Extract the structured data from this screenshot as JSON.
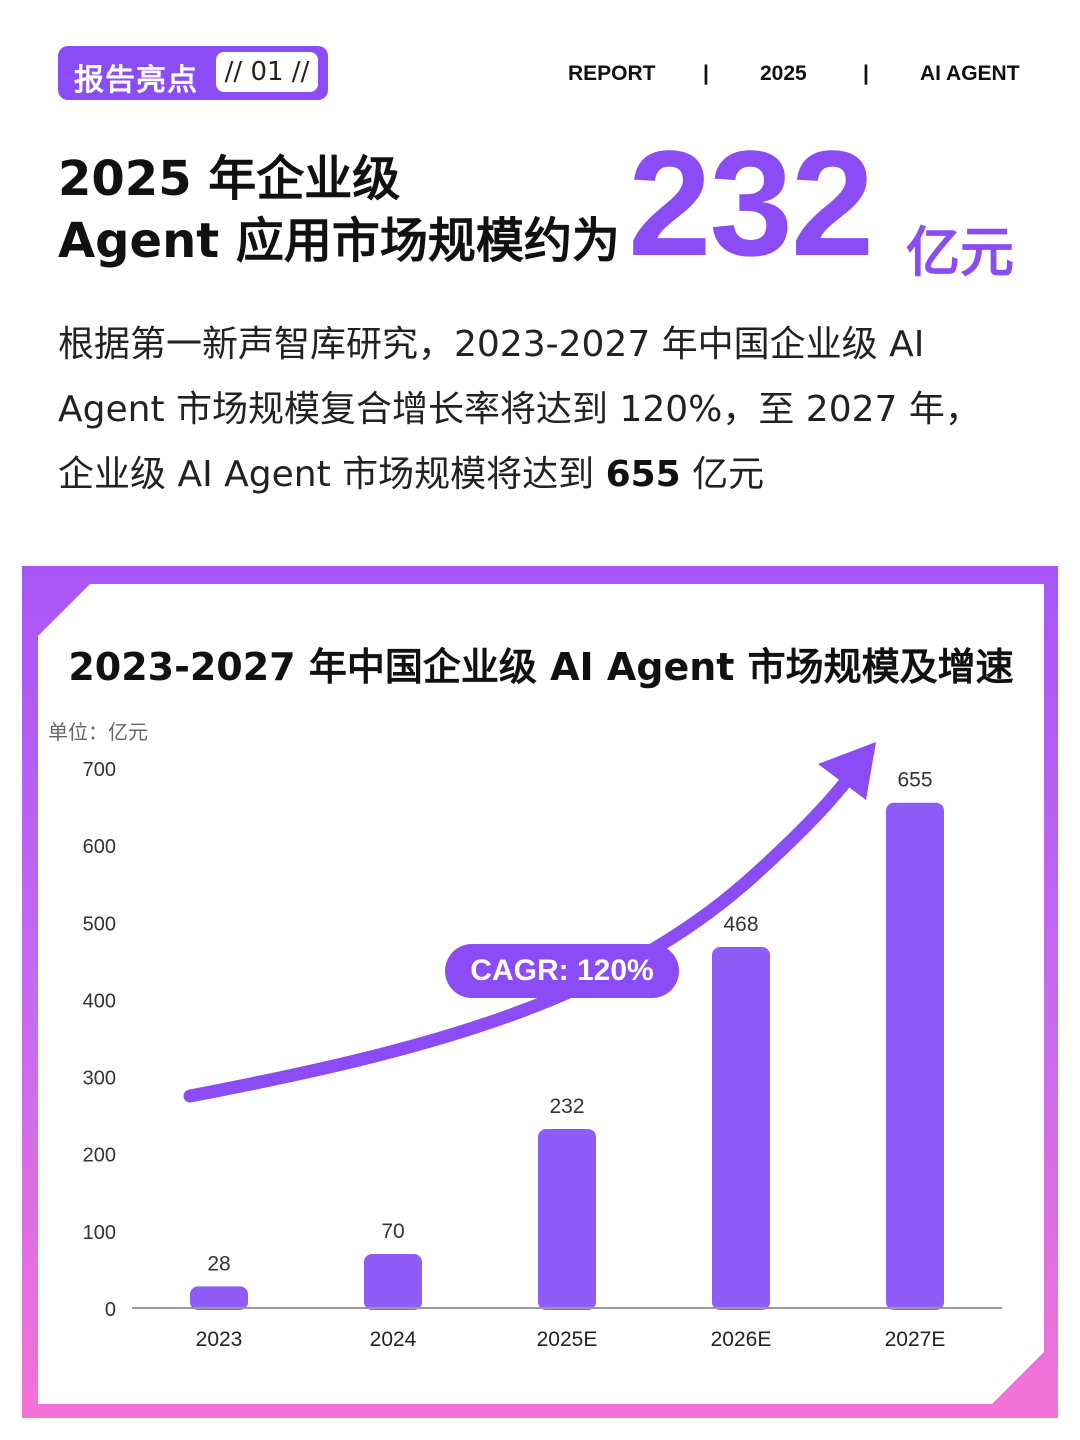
{
  "header": {
    "badge_title": "报告亮点",
    "badge_number": "// 01 //",
    "nav": [
      "REPORT",
      "|",
      "2025",
      "|",
      "AI AGENT"
    ]
  },
  "headline": {
    "line1": "2025 年企业级",
    "line2": "Agent 应用市场规模约为",
    "big_number": "232",
    "unit": "亿元"
  },
  "description": {
    "line1": "根据第一新声智库研究，2023-2027 年中国企业级 AI",
    "line2": "Agent 市场规模复合增长率将达到 120%，至 2027 年，",
    "line3_prefix": "企业级 AI Agent 市场规模将达到 ",
    "line3_bold": "655",
    "line3_suffix": " 亿元"
  },
  "colors": {
    "accent": "#8b4cf6",
    "bar": "#8f5cf7",
    "frame_top": "#a855f7",
    "frame_bottom": "#f472d6"
  },
  "chart_data": {
    "type": "bar",
    "title": "2023-2027 年中国企业级 AI Agent 市场规模及增速",
    "unit_label": "单位：亿元",
    "categories": [
      "2023",
      "2024",
      "2025E",
      "2026E",
      "2027E"
    ],
    "values": [
      28,
      70,
      232,
      468,
      655
    ],
    "ylim": [
      0,
      700
    ],
    "yticks": [
      0,
      100,
      200,
      300,
      400,
      500,
      600,
      700
    ],
    "grid": false,
    "annotation": "CAGR: 120%"
  }
}
